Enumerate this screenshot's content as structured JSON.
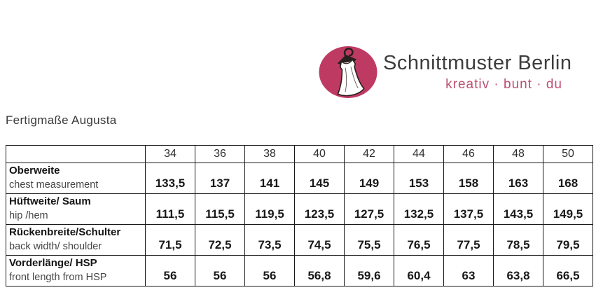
{
  "brand": {
    "name": "Schnittmuster Berlin",
    "tagline": "kreativ · bunt · du",
    "logo_color": "#bf3a63",
    "name_color": "#3d3d3d",
    "tagline_color": "#bd4f71",
    "logo_icon": "dress-on-hanger-icon"
  },
  "page_title": "Fertigmaße Augusta",
  "table": {
    "corner_label": "",
    "sizes": [
      "34",
      "36",
      "38",
      "40",
      "42",
      "44",
      "46",
      "48",
      "50"
    ],
    "rows": [
      {
        "label_de": "Oberweite",
        "label_en": "chest measurement",
        "values": [
          "133,5",
          "137",
          "141",
          "145",
          "149",
          "153",
          "158",
          "163",
          "168"
        ]
      },
      {
        "label_de": "Hüftweite/ Saum",
        "label_en": "hip /hem",
        "values": [
          "111,5",
          "115,5",
          "119,5",
          "123,5",
          "127,5",
          "132,5",
          "137,5",
          "143,5",
          "149,5"
        ]
      },
      {
        "label_de": "Rückenbreite/Schulter",
        "label_en": "back width/ shoulder",
        "values": [
          "71,5",
          "72,5",
          "73,5",
          "74,5",
          "75,5",
          "76,5",
          "77,5",
          "78,5",
          "79,5"
        ]
      },
      {
        "label_de": "Vorderlänge/ HSP",
        "label_en": "front length from HSP",
        "values": [
          "56",
          "56",
          "56",
          "56,8",
          "59,6",
          "60,4",
          "63",
          "63,8",
          "66,5"
        ]
      }
    ]
  }
}
